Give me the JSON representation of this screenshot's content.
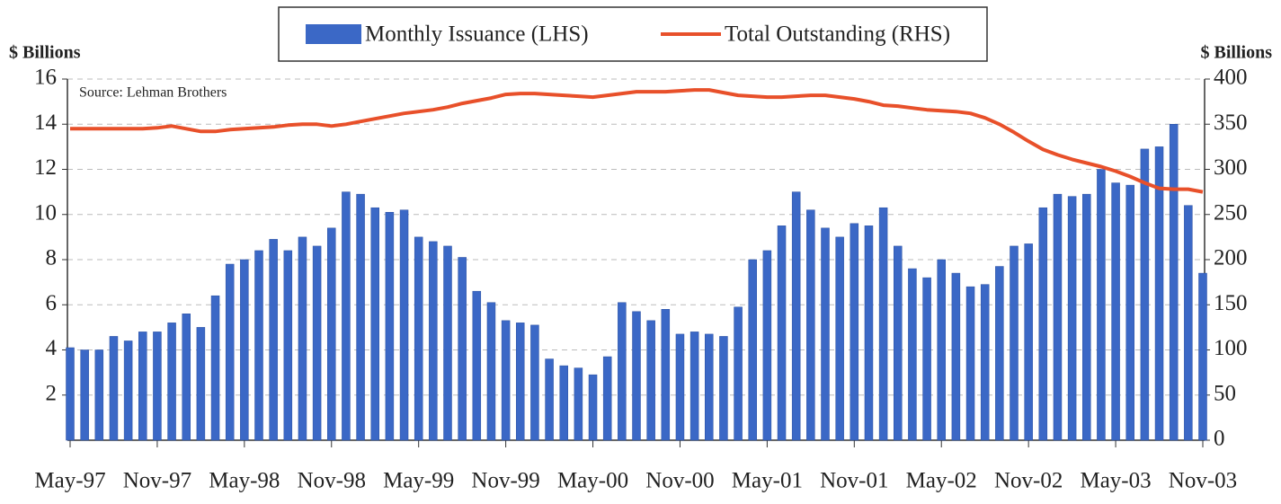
{
  "chart_data": {
    "type": "bar",
    "y_label": "$ Billions",
    "y2_label": "$ Billions",
    "annotation": "Source:  Lehman Brothers",
    "categories": [
      "May-97",
      null,
      null,
      null,
      null,
      null,
      "Nov-97",
      null,
      null,
      null,
      null,
      null,
      "May-98",
      null,
      null,
      null,
      null,
      null,
      "Nov-98",
      null,
      null,
      null,
      null,
      null,
      "May-99",
      null,
      null,
      null,
      null,
      null,
      "Nov-99",
      null,
      null,
      null,
      null,
      null,
      "May-00",
      null,
      null,
      null,
      null,
      null,
      "Nov-00",
      null,
      null,
      null,
      null,
      null,
      "May-01",
      null,
      null,
      null,
      null,
      null,
      "Nov-01",
      null,
      null,
      null,
      null,
      null,
      "May-02",
      null,
      null,
      null,
      null,
      null,
      "Nov-02",
      null,
      null,
      null,
      null,
      null,
      "May-03",
      null,
      null,
      null,
      null,
      null,
      "Nov-03"
    ],
    "series": [
      {
        "name": "Monthly Issuance (LHS)",
        "type": "bar",
        "color": "#3b68c6",
        "values": [
          4.1,
          4.0,
          4.0,
          4.6,
          4.4,
          4.8,
          4.8,
          5.2,
          5.6,
          5.0,
          6.4,
          7.8,
          8.0,
          8.4,
          8.9,
          8.4,
          9.0,
          8.6,
          9.4,
          11.0,
          10.9,
          10.3,
          10.1,
          10.2,
          9.0,
          8.8,
          8.6,
          8.1,
          6.6,
          6.1,
          5.3,
          5.2,
          5.1,
          3.6,
          3.3,
          3.2,
          2.9,
          3.7,
          6.1,
          5.7,
          5.3,
          5.8,
          4.7,
          4.8,
          4.7,
          4.6,
          5.9,
          8.0,
          8.4,
          9.5,
          11.0,
          10.2,
          9.4,
          9.0,
          9.6,
          9.5,
          10.3,
          8.6,
          7.6,
          7.2,
          8.0,
          7.4,
          6.8,
          6.9,
          7.7,
          8.6,
          8.7,
          10.3,
          10.9,
          10.8,
          10.9,
          12.0,
          11.4,
          11.3,
          12.9,
          13.0,
          14.0,
          10.4,
          7.4
        ]
      },
      {
        "name": "Total Outstanding (RHS)",
        "type": "line",
        "axis": "y2",
        "color": "#e8502a",
        "values": [
          345,
          345,
          345,
          345,
          345,
          345,
          346,
          348,
          345,
          342,
          342,
          344,
          345,
          346,
          347,
          349,
          350,
          350,
          348,
          350,
          353,
          356,
          359,
          362,
          364,
          366,
          369,
          373,
          376,
          379,
          383,
          384,
          384,
          383,
          382,
          381,
          380,
          382,
          384,
          386,
          386,
          386,
          387,
          388,
          388,
          385,
          382,
          381,
          380,
          380,
          381,
          382,
          382,
          380,
          378,
          375,
          371,
          370,
          368,
          366,
          365,
          364,
          362,
          357,
          350,
          341,
          331,
          322,
          316,
          311,
          307,
          303,
          298,
          292,
          285,
          279,
          278,
          278,
          275
        ]
      }
    ],
    "ylim": [
      0,
      16
    ],
    "yticks": [
      2,
      4,
      6,
      8,
      10,
      12,
      14,
      16
    ],
    "y2lim": [
      0,
      400
    ],
    "y2ticks": [
      0,
      50,
      100,
      150,
      200,
      250,
      300,
      350,
      400
    ],
    "grid": true,
    "legend": "top"
  }
}
